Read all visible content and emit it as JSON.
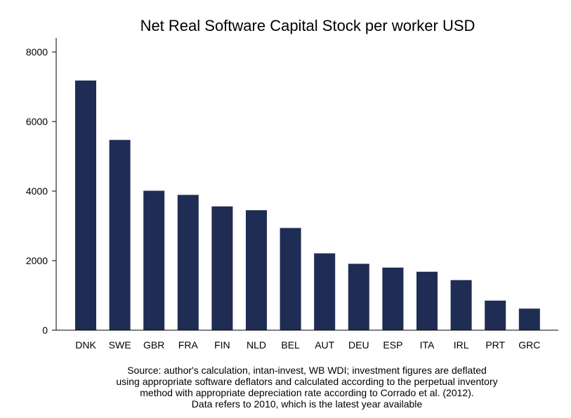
{
  "chart_data": {
    "type": "bar",
    "title": "Net Real Software Capital Stock per worker USD",
    "xlabel": "",
    "ylabel": "",
    "categories": [
      "DNK",
      "SWE",
      "GBR",
      "FRA",
      "FIN",
      "NLD",
      "BEL",
      "AUT",
      "DEU",
      "ESP",
      "ITA",
      "IRL",
      "PRT",
      "GRC"
    ],
    "values": [
      7180,
      5470,
      4010,
      3890,
      3560,
      3450,
      2940,
      2210,
      1910,
      1800,
      1680,
      1440,
      850,
      620
    ],
    "ylim": [
      0,
      8000
    ],
    "yticks": [
      0,
      2000,
      4000,
      6000,
      8000
    ],
    "bar_color": "#1f2d54",
    "grid": false,
    "legend": "none"
  },
  "notes": [
    "Source: author's calculation, intan-invest, WB WDI; investment figures are deflated",
    "using appropriate software deflators and calculated according to the perpetual inventory",
    "method with appropriate depreciation rate according to Corrado et al. (2012).",
    "Data refers to 2010, which is the latest year available"
  ]
}
